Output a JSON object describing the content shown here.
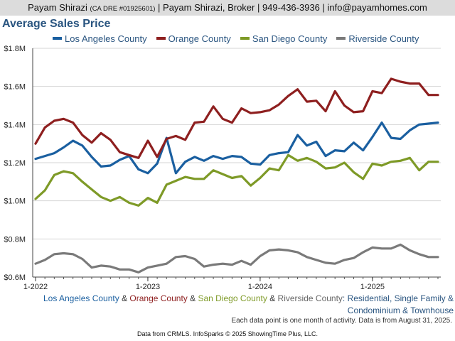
{
  "header": {
    "name": "Payam Shirazi",
    "license": "(CA DRE #01925601)",
    "rest": "| Payam Shirazi, Broker | 949-436-3936 | info@payamhomes.com"
  },
  "subtitle": {
    "s1": "Los Angeles County",
    "a1": " & ",
    "s2": "Orange County",
    "a2": " & ",
    "s3": "San Diego County",
    "a3": " & ",
    "s4": "Riverside County",
    "desc1": ": Residential, Single Family &",
    "desc2": "Condominium & Townhouse"
  },
  "notes": "Each data point is one month of activity. Data is from August 31, 2025.",
  "footer": "Data from CRMLS. InfoSparks © 2025 ShowingTime Plus, LLC.",
  "colors": {
    "la": "#1a5fa0",
    "orange": "#8e1f1f",
    "sandiego": "#7e9a27",
    "riverside": "#7a7a7a",
    "text": "#2a5580"
  },
  "chart_data": {
    "type": "line",
    "title": "Average Sales Price",
    "xlabel": "",
    "ylabel": "",
    "ylim": [
      600000,
      1800000
    ],
    "yticks": [
      600000,
      800000,
      1000000,
      1200000,
      1400000,
      1600000,
      1800000
    ],
    "ytick_labels": [
      "$0.6M",
      "$0.8M",
      "$1.0M",
      "$1.2M",
      "$1.4M",
      "$1.6M",
      "$1.8M"
    ],
    "x": [
      "2022-01",
      "2022-02",
      "2022-03",
      "2022-04",
      "2022-05",
      "2022-06",
      "2022-07",
      "2022-08",
      "2022-09",
      "2022-10",
      "2022-11",
      "2022-12",
      "2023-01",
      "2023-02",
      "2023-03",
      "2023-04",
      "2023-05",
      "2023-06",
      "2023-07",
      "2023-08",
      "2023-09",
      "2023-10",
      "2023-11",
      "2023-12",
      "2024-01",
      "2024-02",
      "2024-03",
      "2024-04",
      "2024-05",
      "2024-06",
      "2024-07",
      "2024-08",
      "2024-09",
      "2024-10",
      "2024-11",
      "2024-12",
      "2025-01",
      "2025-02",
      "2025-03",
      "2025-04",
      "2025-05",
      "2025-06",
      "2025-07",
      "2025-08"
    ],
    "xtick_labels": [
      "1-2022",
      "1-2023",
      "1-2024",
      "1-2025"
    ],
    "xtick_dates": [
      "2022-01",
      "2023-01",
      "2024-01",
      "2025-01"
    ],
    "grid": true,
    "legend_position": "top",
    "series": [
      {
        "name": "Los Angeles County",
        "color": "#1a5fa0",
        "values": [
          1220000,
          1235000,
          1250000,
          1280000,
          1315000,
          1290000,
          1230000,
          1180000,
          1185000,
          1215000,
          1235000,
          1165000,
          1145000,
          1195000,
          1330000,
          1145000,
          1205000,
          1230000,
          1210000,
          1235000,
          1220000,
          1235000,
          1230000,
          1195000,
          1190000,
          1240000,
          1250000,
          1255000,
          1345000,
          1290000,
          1310000,
          1235000,
          1265000,
          1260000,
          1305000,
          1265000,
          1335000,
          1410000,
          1330000,
          1325000,
          1370000,
          1400000,
          1405000,
          1410000
        ]
      },
      {
        "name": "Orange County",
        "color": "#8e1f1f",
        "values": [
          1300000,
          1385000,
          1420000,
          1430000,
          1410000,
          1345000,
          1305000,
          1355000,
          1320000,
          1255000,
          1240000,
          1225000,
          1315000,
          1230000,
          1325000,
          1340000,
          1320000,
          1410000,
          1415000,
          1495000,
          1430000,
          1410000,
          1485000,
          1460000,
          1465000,
          1475000,
          1505000,
          1550000,
          1585000,
          1520000,
          1525000,
          1470000,
          1575000,
          1500000,
          1465000,
          1470000,
          1575000,
          1565000,
          1640000,
          1625000,
          1615000,
          1615000,
          1555000,
          1555000
        ]
      },
      {
        "name": "San Diego County",
        "color": "#7e9a27",
        "values": [
          1010000,
          1055000,
          1135000,
          1155000,
          1145000,
          1100000,
          1060000,
          1020000,
          1000000,
          1020000,
          990000,
          975000,
          1015000,
          990000,
          1085000,
          1105000,
          1125000,
          1115000,
          1115000,
          1160000,
          1140000,
          1120000,
          1130000,
          1080000,
          1120000,
          1170000,
          1160000,
          1240000,
          1210000,
          1225000,
          1205000,
          1170000,
          1175000,
          1200000,
          1150000,
          1115000,
          1195000,
          1185000,
          1205000,
          1210000,
          1225000,
          1160000,
          1205000,
          1205000
        ]
      },
      {
        "name": "Riverside County",
        "color": "#7a7a7a",
        "values": [
          670000,
          690000,
          720000,
          725000,
          720000,
          695000,
          650000,
          660000,
          655000,
          640000,
          640000,
          625000,
          650000,
          660000,
          670000,
          705000,
          710000,
          695000,
          655000,
          665000,
          670000,
          665000,
          685000,
          665000,
          710000,
          740000,
          745000,
          740000,
          730000,
          705000,
          690000,
          675000,
          670000,
          690000,
          700000,
          730000,
          755000,
          750000,
          750000,
          770000,
          740000,
          720000,
          705000,
          705000
        ]
      }
    ]
  }
}
